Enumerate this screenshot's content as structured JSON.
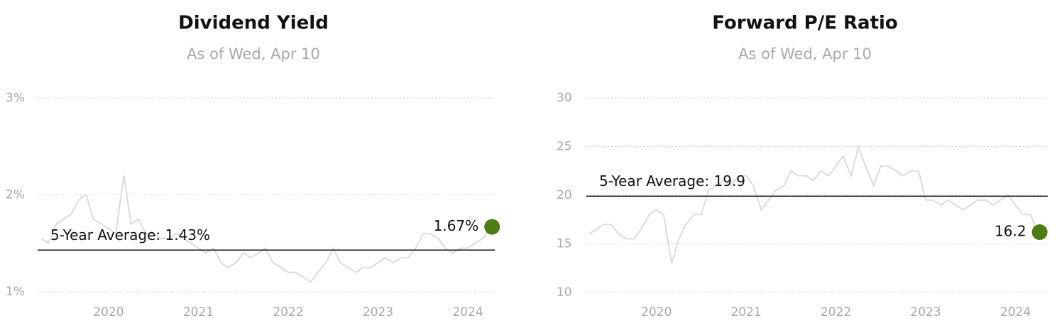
{
  "chart_data": [
    {
      "type": "line",
      "title": "Dividend Yield",
      "subtitle": "As of Wed, Apr 10",
      "x": [
        2019.25,
        2019.33,
        2019.42,
        2019.5,
        2019.58,
        2019.67,
        2019.75,
        2019.83,
        2019.92,
        2020.0,
        2020.08,
        2020.17,
        2020.25,
        2020.33,
        2020.42,
        2020.5,
        2020.58,
        2020.67,
        2020.75,
        2020.83,
        2020.92,
        2021.0,
        2021.08,
        2021.17,
        2021.25,
        2021.33,
        2021.42,
        2021.5,
        2021.58,
        2021.67,
        2021.75,
        2021.83,
        2021.92,
        2022.0,
        2022.08,
        2022.17,
        2022.25,
        2022.33,
        2022.42,
        2022.5,
        2022.58,
        2022.67,
        2022.75,
        2022.83,
        2022.92,
        2023.0,
        2023.08,
        2023.17,
        2023.25,
        2023.33,
        2023.42,
        2023.5,
        2023.58,
        2023.67,
        2023.75,
        2023.83,
        2023.92,
        2024.0,
        2024.08,
        2024.17,
        2024.25
      ],
      "values": [
        1.55,
        1.5,
        1.7,
        1.75,
        1.8,
        1.95,
        2.0,
        1.75,
        1.7,
        1.65,
        1.6,
        2.2,
        1.7,
        1.75,
        1.6,
        1.6,
        1.55,
        1.55,
        1.6,
        1.55,
        1.5,
        1.45,
        1.4,
        1.45,
        1.3,
        1.25,
        1.3,
        1.4,
        1.35,
        1.4,
        1.45,
        1.3,
        1.25,
        1.2,
        1.2,
        1.15,
        1.1,
        1.2,
        1.3,
        1.45,
        1.3,
        1.25,
        1.2,
        1.25,
        1.25,
        1.3,
        1.35,
        1.3,
        1.35,
        1.35,
        1.45,
        1.6,
        1.6,
        1.55,
        1.45,
        1.4,
        1.45,
        1.45,
        1.5,
        1.55,
        1.67
      ],
      "color": "#d9d9d9",
      "average": 1.43,
      "average_label": "5-Year Average: 1.43%",
      "marker": {
        "x": 2024.27,
        "value": 1.67,
        "label": "1.67%",
        "color": "#4e7d17"
      },
      "xlim": [
        2019.21,
        2024.3
      ],
      "xticks": [
        2020,
        2021,
        2022,
        2023,
        2024
      ],
      "ylim": [
        1,
        3
      ],
      "yticks": [
        {
          "value": 1,
          "label": "1%"
        },
        {
          "value": 2,
          "label": "2%"
        },
        {
          "value": 3,
          "label": "3%"
        }
      ],
      "grid": true
    },
    {
      "type": "line",
      "title": "Forward P/E Ratio",
      "subtitle": "As of Wed, Apr 10",
      "x": [
        2019.25,
        2019.33,
        2019.42,
        2019.5,
        2019.58,
        2019.67,
        2019.75,
        2019.83,
        2019.92,
        2020.0,
        2020.08,
        2020.17,
        2020.25,
        2020.33,
        2020.42,
        2020.5,
        2020.58,
        2020.67,
        2020.75,
        2020.83,
        2020.92,
        2021.0,
        2021.08,
        2021.17,
        2021.25,
        2021.33,
        2021.42,
        2021.5,
        2021.58,
        2021.67,
        2021.75,
        2021.83,
        2021.92,
        2022.0,
        2022.08,
        2022.17,
        2022.25,
        2022.33,
        2022.42,
        2022.5,
        2022.58,
        2022.67,
        2022.75,
        2022.83,
        2022.92,
        2023.0,
        2023.08,
        2023.17,
        2023.25,
        2023.33,
        2023.42,
        2023.5,
        2023.58,
        2023.67,
        2023.75,
        2023.83,
        2023.92,
        2024.0,
        2024.08,
        2024.17,
        2024.25
      ],
      "values": [
        16,
        16.5,
        17,
        17,
        16,
        15.5,
        15.5,
        16.5,
        18,
        18.5,
        18,
        13,
        15.5,
        17,
        18,
        18,
        20.5,
        21,
        21.5,
        21,
        22,
        22,
        21,
        18.5,
        19.5,
        20.5,
        21,
        22.5,
        22,
        22,
        21.5,
        22.5,
        22,
        23,
        24,
        22,
        25,
        23,
        21,
        23,
        23,
        22.5,
        22,
        22.5,
        22.5,
        19.5,
        19.5,
        19,
        19.5,
        19,
        18.5,
        19,
        19.5,
        19.5,
        19,
        19.5,
        20,
        19,
        18,
        18,
        16.2
      ],
      "color": "#d9d9d9",
      "average": 19.9,
      "average_label": "5-Year Average: 19.9",
      "marker": {
        "x": 2024.27,
        "value": 16.2,
        "label": "16.2",
        "color": "#4e7d17"
      },
      "xlim": [
        2019.22,
        2024.36
      ],
      "xticks": [
        2020,
        2021,
        2022,
        2023,
        2024
      ],
      "ylim": [
        10,
        30
      ],
      "yticks": [
        10,
        15,
        20,
        25,
        30
      ],
      "grid": true
    }
  ]
}
